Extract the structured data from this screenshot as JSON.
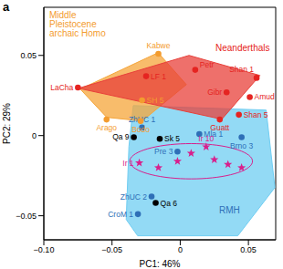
{
  "chart_data": {
    "type": "scatter",
    "title": "a",
    "x_label": "PC1: 46%",
    "y_label": "PC2: 29%",
    "xlim": [
      -0.1,
      0.07
    ],
    "ylim": [
      -0.065,
      0.08
    ],
    "xticks": [
      {
        "value": -0.1,
        "label": "−0.10"
      },
      {
        "value": -0.05,
        "label": "−0.05"
      },
      0,
      0.05
    ],
    "yticks": [
      {
        "value": -0.05,
        "label": "−0.05"
      },
      0,
      0.05
    ],
    "ellipse": {
      "color": "#d81f8c",
      "center": [
        0.008,
        -0.016
      ],
      "semi_axes": [
        0.045,
        0.011
      ]
    },
    "series": [
      {
        "name": "RMH",
        "color": "#2e6fb7",
        "marker": "circle",
        "x": [
          -0.028,
          0.014,
          0.045,
          -0.002,
          -0.021,
          -0.031
        ],
        "y": [
          0.005,
          0.001,
          -0.001,
          -0.01,
          -0.038,
          -0.049
        ],
        "labels": [
          "ZhUC 1",
          "Mla 1",
          "Brno 3",
          "Pre 3",
          "ZhUC 2",
          "CroM 1"
        ],
        "region": {
          "color": "#6fcdf2",
          "x": [
            -0.0344,
            0.063,
            0.0694,
            0.0422,
            -0.0312,
            -0.0396,
            -0.0376
          ],
          "y": [
            0.0187,
            0.0159,
            -0.0324,
            -0.0625,
            -0.0625,
            -0.0523,
            -0.0068
          ]
        }
      },
      {
        "name": "Middle Pleistocene archaic Homo",
        "color": "#f39c2f",
        "marker": "circle",
        "x": [
          -0.016,
          -0.028,
          -0.054,
          -0.029
        ],
        "y": [
          0.051,
          0.022,
          0.01,
          0.009
        ],
        "labels": [
          "Kabwe",
          "SH 5",
          "Arago",
          "Bodo"
        ],
        "region": {
          "color": "#f5a53a",
          "x": [
            -0.0162,
            -0.0733,
            -0.0539,
            -0.0279,
            0.0045
          ],
          "y": [
            0.0517,
            0.029,
            0.0114,
            0.0091,
            0.0318
          ]
        }
      },
      {
        "name": "Neanderthals",
        "color": "#e52421",
        "marker": "circle",
        "x": [
          0.011,
          0.056,
          0.034,
          0.051,
          0.043,
          0.029,
          -0.075,
          -0.025
        ],
        "y": [
          0.041,
          0.036,
          0.027,
          0.024,
          0.013,
          0.01,
          0.03,
          0.037
        ],
        "labels": [
          "Petr",
          "Shan 1",
          "Gibr",
          "Amud",
          "Shan 5",
          "Guatt",
          "LaCha",
          "LF 1"
        ],
        "region": {
          "color": "#e8403a",
          "x": [
            -0.0746,
            0.0065,
            0.0584,
            0.0305
          ],
          "y": [
            0.0295,
            0.05,
            0.0375,
            0.0102
          ]
        }
      },
      {
        "color": "#000000",
        "marker": "circle",
        "x": [
          -0.034,
          -0.015,
          -0.018
        ],
        "y": [
          -0.001,
          -0.002,
          -0.042
        ],
        "labels": [
          "Qa 9",
          "Sk 5",
          "Qa 6"
        ]
      },
      {
        "color": "#d81f8c",
        "marker": "star",
        "x": [
          -0.03,
          -0.016,
          -0.002,
          0.008,
          0.019,
          0.025,
          0.035,
          0.045
        ],
        "y": [
          -0.017,
          -0.02,
          -0.016,
          -0.011,
          -0.007,
          -0.015,
          -0.018,
          -0.02
        ],
        "labels": [
          "Ir 1",
          null,
          null,
          null,
          "Ir 10",
          null,
          null,
          null
        ]
      }
    ]
  }
}
